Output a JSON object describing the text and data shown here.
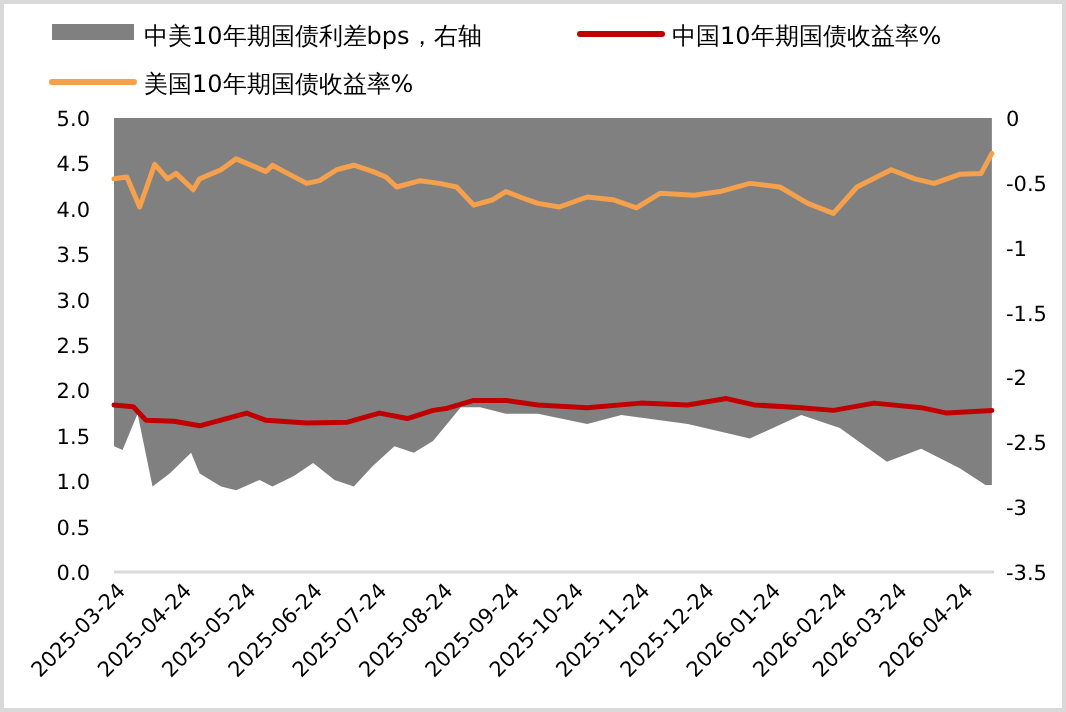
{
  "chart_data": {
    "type": "line",
    "legend": "top",
    "xlim": [
      "2025-03-21",
      "2026-05-06"
    ],
    "xticks": [
      "2025-03-24",
      "2025-04-24",
      "2025-05-24",
      "2025-06-24",
      "2025-07-24",
      "2025-08-24",
      "2025-09-24",
      "2025-10-24",
      "2025-11-24",
      "2025-12-24",
      "2026-01-24",
      "2026-02-24",
      "2026-03-24",
      "2026-04-24"
    ],
    "ylim": [
      0,
      5
    ],
    "yticks": [
      {
        "value": 0,
        "label": "0.0"
      },
      {
        "value": 0.5,
        "label": "0.5"
      },
      {
        "value": 1,
        "label": "1.0"
      },
      {
        "value": 1.5,
        "label": "1.5"
      },
      {
        "value": 2,
        "label": "2.0"
      },
      {
        "value": 2.5,
        "label": "2.5"
      },
      {
        "value": 3,
        "label": "3.0"
      },
      {
        "value": 3.5,
        "label": "3.5"
      },
      {
        "value": 4,
        "label": "4.0"
      },
      {
        "value": 4.5,
        "label": "4.5"
      },
      {
        "value": 5,
        "label": "5.0"
      }
    ],
    "y2lim": [
      -3.5,
      0
    ],
    "y2ticks": [
      0,
      -0.5,
      -1,
      -1.5,
      -2,
      -2.5,
      -3,
      -3.5
    ],
    "series": [
      {
        "name": "中美10年期国债利差bps，右轴",
        "type": "area",
        "axis": "y2",
        "color": "#808080",
        "x": [
          "2025-03-21",
          "2025-03-25",
          "2025-04-01",
          "2025-04-08",
          "2025-04-16",
          "2025-04-26",
          "2025-04-30",
          "2025-05-10",
          "2025-05-17",
          "2025-05-28",
          "2025-06-03",
          "2025-06-13",
          "2025-06-22",
          "2025-07-02",
          "2025-07-11",
          "2025-07-20",
          "2025-07-30",
          "2025-08-08",
          "2025-08-17",
          "2025-08-30",
          "2025-09-08",
          "2025-09-20",
          "2025-10-05",
          "2025-10-28",
          "2025-11-13",
          "2025-12-14",
          "2026-01-12",
          "2026-02-05",
          "2026-02-23",
          "2026-03-17",
          "2026-04-02",
          "2026-04-20",
          "2026-05-02",
          "2026-05-05"
        ],
        "values": [
          -2.53,
          -2.56,
          -2.28,
          -2.84,
          -2.74,
          -2.58,
          -2.74,
          -2.84,
          -2.87,
          -2.79,
          -2.84,
          -2.76,
          -2.66,
          -2.79,
          -2.84,
          -2.68,
          -2.53,
          -2.58,
          -2.49,
          -2.23,
          -2.23,
          -2.28,
          -2.28,
          -2.36,
          -2.29,
          -2.36,
          -2.47,
          -2.29,
          -2.39,
          -2.65,
          -2.55,
          -2.7,
          -2.83,
          -2.83
        ]
      },
      {
        "name": "中国10年期国债收益率%",
        "color": "#c00000",
        "x": [
          "2025-03-21",
          "2025-03-30",
          "2025-04-05",
          "2025-04-18",
          "2025-04-30",
          "2025-05-22",
          "2025-05-31",
          "2025-06-19",
          "2025-07-08",
          "2025-07-23",
          "2025-08-05",
          "2025-08-17",
          "2025-08-23",
          "2025-09-05",
          "2025-09-20",
          "2025-10-05",
          "2025-10-28",
          "2025-11-22",
          "2025-12-14",
          "2026-01-01",
          "2026-01-14",
          "2026-02-05",
          "2026-02-20",
          "2026-03-11",
          "2026-04-02",
          "2026-04-14",
          "2026-05-05"
        ],
        "values": [
          1.84,
          1.82,
          1.67,
          1.66,
          1.61,
          1.75,
          1.67,
          1.64,
          1.65,
          1.75,
          1.69,
          1.78,
          1.8,
          1.89,
          1.89,
          1.84,
          1.81,
          1.86,
          1.84,
          1.91,
          1.84,
          1.81,
          1.78,
          1.86,
          1.81,
          1.75,
          1.78
        ]
      },
      {
        "name": "美国10年期国债收益率%",
        "color": "#f4a04c",
        "x": [
          "2025-03-21",
          "2025-03-27",
          "2025-04-02",
          "2025-04-09",
          "2025-04-15",
          "2025-04-19",
          "2025-04-27",
          "2025-04-30",
          "2025-05-10",
          "2025-05-17",
          "2025-05-25",
          "2025-05-31",
          "2025-06-03",
          "2025-06-10",
          "2025-06-19",
          "2025-06-25",
          "2025-07-03",
          "2025-07-11",
          "2025-07-20",
          "2025-07-26",
          "2025-07-31",
          "2025-08-11",
          "2025-08-20",
          "2025-08-28",
          "2025-09-05",
          "2025-09-14",
          "2025-09-20",
          "2025-09-30",
          "2025-10-05",
          "2025-10-15",
          "2025-10-28",
          "2025-11-09",
          "2025-11-20",
          "2025-12-01",
          "2025-12-17",
          "2025-12-29",
          "2026-01-12",
          "2026-01-26",
          "2026-02-08",
          "2026-02-20",
          "2026-03-03",
          "2026-03-19",
          "2026-03-30",
          "2026-04-08",
          "2026-04-20",
          "2026-04-30",
          "2026-05-05"
        ],
        "values": [
          4.33,
          4.35,
          4.02,
          4.49,
          4.33,
          4.39,
          4.21,
          4.33,
          4.43,
          4.55,
          4.47,
          4.41,
          4.48,
          4.39,
          4.28,
          4.31,
          4.43,
          4.48,
          4.41,
          4.35,
          4.24,
          4.31,
          4.28,
          4.24,
          4.04,
          4.1,
          4.19,
          4.1,
          4.06,
          4.02,
          4.13,
          4.1,
          4.01,
          4.17,
          4.15,
          4.19,
          4.28,
          4.24,
          4.06,
          3.95,
          4.24,
          4.43,
          4.33,
          4.28,
          4.38,
          4.39,
          4.61
        ]
      }
    ]
  }
}
